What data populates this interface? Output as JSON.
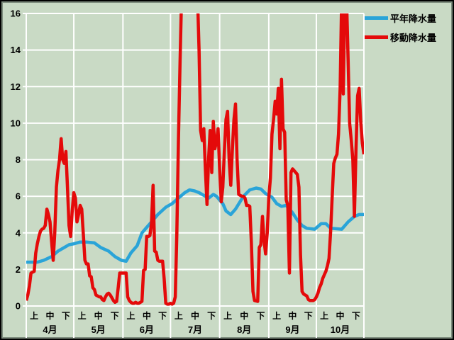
{
  "window": {
    "background_color": "#c9dac5",
    "frame_color": "#000000",
    "bevel_color": "#7e8d7e"
  },
  "chart_data": {
    "type": "line",
    "title": "",
    "grid": {
      "color": "#ffffff",
      "horizontal": true,
      "vertical_at_month_boundaries": true,
      "legend_position": "top-right"
    },
    "y_axis": {
      "min": 0,
      "max": 16,
      "step": 2,
      "ticks": [
        0,
        2,
        4,
        6,
        8,
        10,
        12,
        14,
        16
      ]
    },
    "x_axis": {
      "period_labels": [
        "上",
        "中",
        "下"
      ],
      "months": [
        {
          "label": "4月",
          "days": 30
        },
        {
          "label": "5月",
          "days": 31
        },
        {
          "label": "6月",
          "days": 30
        },
        {
          "label": "7月",
          "days": 31
        },
        {
          "label": "8月",
          "days": 31
        },
        {
          "label": "9月",
          "days": 30
        },
        {
          "label": "10月",
          "days": 31
        }
      ],
      "total_days": 214
    },
    "series": [
      {
        "name": "平年降水量",
        "color": "#2aa4d8",
        "stroke_width": 4.5,
        "points": [
          [
            0,
            2.4
          ],
          [
            7,
            2.4
          ],
          [
            11,
            2.5
          ],
          [
            16,
            2.7
          ],
          [
            20,
            3.0
          ],
          [
            25,
            3.25
          ],
          [
            27,
            3.35
          ],
          [
            30,
            3.4
          ],
          [
            34,
            3.5
          ],
          [
            38,
            3.5
          ],
          [
            43,
            3.45
          ],
          [
            47,
            3.2
          ],
          [
            52,
            3.0
          ],
          [
            56,
            2.7
          ],
          [
            60,
            2.5
          ],
          [
            63,
            2.45
          ],
          [
            66,
            2.9
          ],
          [
            70,
            3.3
          ],
          [
            73,
            4.0
          ],
          [
            76,
            4.3
          ],
          [
            80,
            4.7
          ],
          [
            83,
            5.0
          ],
          [
            88,
            5.4
          ],
          [
            92,
            5.6
          ],
          [
            96,
            5.9
          ],
          [
            100,
            6.2
          ],
          [
            103,
            6.35
          ],
          [
            106,
            6.3
          ],
          [
            109,
            6.2
          ],
          [
            112,
            6.05
          ],
          [
            115,
            5.9
          ],
          [
            118,
            6.1
          ],
          [
            120,
            6.0
          ],
          [
            124,
            5.6
          ],
          [
            126,
            5.2
          ],
          [
            129,
            5.0
          ],
          [
            132,
            5.3
          ],
          [
            137,
            6.0
          ],
          [
            141,
            6.35
          ],
          [
            145,
            6.45
          ],
          [
            148,
            6.4
          ],
          [
            151,
            6.15
          ],
          [
            155,
            5.95
          ],
          [
            158,
            5.6
          ],
          [
            161,
            5.45
          ],
          [
            164,
            5.5
          ],
          [
            168,
            5.1
          ],
          [
            171,
            4.7
          ],
          [
            174,
            4.4
          ],
          [
            177,
            4.25
          ],
          [
            182,
            4.2
          ],
          [
            186,
            4.5
          ],
          [
            189,
            4.5
          ],
          [
            192,
            4.25
          ],
          [
            199,
            4.2
          ],
          [
            203,
            4.6
          ],
          [
            207,
            4.9
          ],
          [
            210,
            5.0
          ],
          [
            213,
            5.0
          ]
        ]
      },
      {
        "name": "移動降水量",
        "color": "#e40a0a",
        "stroke_width": 4.5,
        "x_start_day": 0,
        "x_step": 1,
        "note": "values of 17 are off-scale (>16) and clipped at the plot top",
        "values": [
          0.3,
          0.6,
          1.1,
          1.8,
          1.85,
          1.9,
          2.9,
          3.4,
          3.8,
          4.1,
          4.2,
          4.25,
          4.4,
          5.3,
          5.0,
          4.6,
          3.5,
          2.5,
          4.0,
          6.5,
          7.4,
          8.0,
          9.15,
          8.0,
          7.8,
          8.45,
          6.5,
          4.4,
          3.8,
          5.2,
          6.2,
          5.9,
          4.6,
          5.0,
          5.5,
          5.3,
          3.9,
          2.5,
          2.3,
          2.3,
          1.65,
          1.6,
          1.0,
          0.9,
          0.6,
          0.55,
          0.5,
          0.5,
          0.35,
          0.3,
          0.5,
          0.65,
          0.7,
          0.6,
          0.45,
          0.3,
          0.2,
          0.25,
          1.0,
          1.8,
          1.8,
          1.8,
          1.8,
          1.8,
          0.5,
          0.3,
          0.2,
          0.15,
          0.15,
          0.2,
          0.15,
          0.15,
          0.2,
          0.25,
          1.95,
          2.0,
          3.8,
          3.8,
          3.85,
          4.5,
          6.6,
          3.0,
          2.95,
          2.5,
          2.45,
          2.45,
          2.45,
          1.5,
          0.15,
          0.1,
          0.1,
          0.15,
          0.1,
          0.15,
          0.5,
          4.0,
          9.0,
          13.3,
          17,
          17,
          17,
          17,
          17,
          17,
          17,
          17,
          17,
          17,
          17,
          14.0,
          9.6,
          9.05,
          9.7,
          7.5,
          5.55,
          8.0,
          9.6,
          7.3,
          10.1,
          8.6,
          9.0,
          9.7,
          7.5,
          5.7,
          6.5,
          8.5,
          10.2,
          10.65,
          8.0,
          6.6,
          8.5,
          10.2,
          11.05,
          8.0,
          6.1,
          6.05,
          6.0,
          6.0,
          5.9,
          5.5,
          5.5,
          5.45,
          3.5,
          0.8,
          0.3,
          0.28,
          0.25,
          3.2,
          3.35,
          4.9,
          3.6,
          2.85,
          4.0,
          5.9,
          7.0,
          9.4,
          10.2,
          11.2,
          10.5,
          11.9,
          8.6,
          12.4,
          9.7,
          9.5,
          5.8,
          5.5,
          1.8,
          7.3,
          7.5,
          7.4,
          7.3,
          7.2,
          6.5,
          2.8,
          0.8,
          0.65,
          0.6,
          0.55,
          0.35,
          0.3,
          0.3,
          0.3,
          0.35,
          0.5,
          0.7,
          1.0,
          1.2,
          1.5,
          1.7,
          1.9,
          2.2,
          2.6,
          4.1,
          6.0,
          7.8,
          8.1,
          8.3,
          9.4,
          11.9,
          17,
          11.6,
          17,
          17,
          13.5,
          10.0,
          9.1,
          8.0,
          4.9,
          8.5,
          11.5,
          11.9,
          10.1,
          8.9,
          8.3
        ]
      }
    ]
  }
}
